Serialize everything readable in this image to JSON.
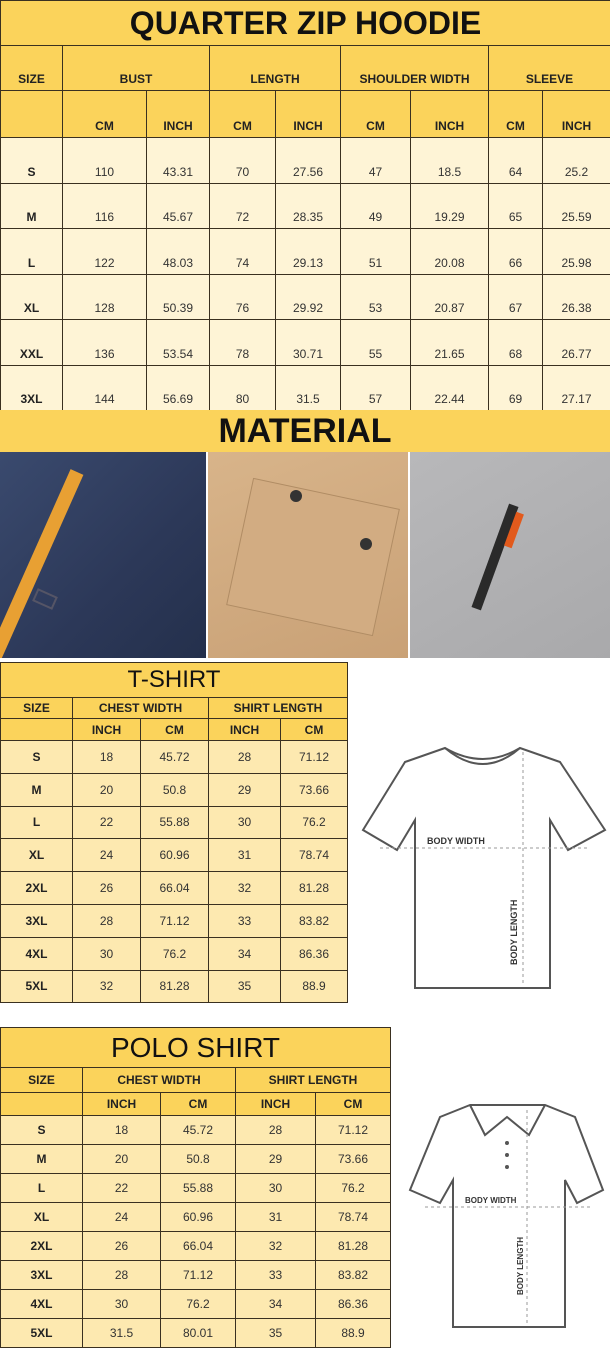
{
  "colors": {
    "header": "#fbd35b",
    "cell": "#fef4d6"
  },
  "hoodie": {
    "title": "QUARTER ZIP HOODIE",
    "size_label": "SIZE",
    "groups": [
      "BUST",
      "LENGTH",
      "SHOULDER WIDTH",
      "SLEEVE"
    ],
    "units": [
      "CM",
      "INCH",
      "CM",
      "INCH",
      "CM",
      "INCH",
      "CM",
      "INCH"
    ],
    "rows": [
      [
        "S",
        "110",
        "43.31",
        "70",
        "27.56",
        "47",
        "18.5",
        "64",
        "25.2"
      ],
      [
        "M",
        "116",
        "45.67",
        "72",
        "28.35",
        "49",
        "19.29",
        "65",
        "25.59"
      ],
      [
        "L",
        "122",
        "48.03",
        "74",
        "29.13",
        "51",
        "20.08",
        "66",
        "25.98"
      ],
      [
        "XL",
        "128",
        "50.39",
        "76",
        "29.92",
        "53",
        "20.87",
        "67",
        "26.38"
      ],
      [
        "XXL",
        "136",
        "53.54",
        "78",
        "30.71",
        "55",
        "21.65",
        "68",
        "26.77"
      ],
      [
        "3XL",
        "144",
        "56.69",
        "80",
        "31.5",
        "57",
        "22.44",
        "69",
        "27.17"
      ]
    ]
  },
  "material": {
    "title": "MATERIAL",
    "photos": [
      "navy-fabric-pocket-zipper",
      "khaki-flap-pocket",
      "grey-sleeve-zipper-pocket"
    ]
  },
  "tshirt": {
    "title": "T-SHIRT",
    "size_label": "SIZE",
    "groups": [
      "CHEST WIDTH",
      "SHIRT LENGTH"
    ],
    "units": [
      "INCH",
      "CM",
      "INCH",
      "CM"
    ],
    "rows": [
      [
        "S",
        "18",
        "45.72",
        "28",
        "71.12"
      ],
      [
        "M",
        "20",
        "50.8",
        "29",
        "73.66"
      ],
      [
        "L",
        "22",
        "55.88",
        "30",
        "76.2"
      ],
      [
        "XL",
        "24",
        "60.96",
        "31",
        "78.74"
      ],
      [
        "2XL",
        "26",
        "66.04",
        "32",
        "81.28"
      ],
      [
        "3XL",
        "28",
        "71.12",
        "33",
        "83.82"
      ],
      [
        "4XL",
        "30",
        "76.2",
        "34",
        "86.36"
      ],
      [
        "5XL",
        "32",
        "81.28",
        "35",
        "88.9"
      ]
    ],
    "diagram": {
      "width_label": "BODY WIDTH",
      "length_label": "BODY LENGTH"
    }
  },
  "polo": {
    "title": "POLO SHIRT",
    "size_label": "SIZE",
    "groups": [
      "CHEST WIDTH",
      "SHIRT LENGTH"
    ],
    "units": [
      "INCH",
      "CM",
      "INCH",
      "CM"
    ],
    "rows": [
      [
        "S",
        "18",
        "45.72",
        "28",
        "71.12"
      ],
      [
        "M",
        "20",
        "50.8",
        "29",
        "73.66"
      ],
      [
        "L",
        "22",
        "55.88",
        "30",
        "76.2"
      ],
      [
        "XL",
        "24",
        "60.96",
        "31",
        "78.74"
      ],
      [
        "2XL",
        "26",
        "66.04",
        "32",
        "81.28"
      ],
      [
        "3XL",
        "28",
        "71.12",
        "33",
        "83.82"
      ],
      [
        "4XL",
        "30",
        "76.2",
        "34",
        "86.36"
      ],
      [
        "5XL",
        "31.5",
        "80.01",
        "35",
        "88.9"
      ]
    ],
    "diagram": {
      "width_label": "BODY WIDTH",
      "length_label": "BODY LENGTH"
    }
  }
}
